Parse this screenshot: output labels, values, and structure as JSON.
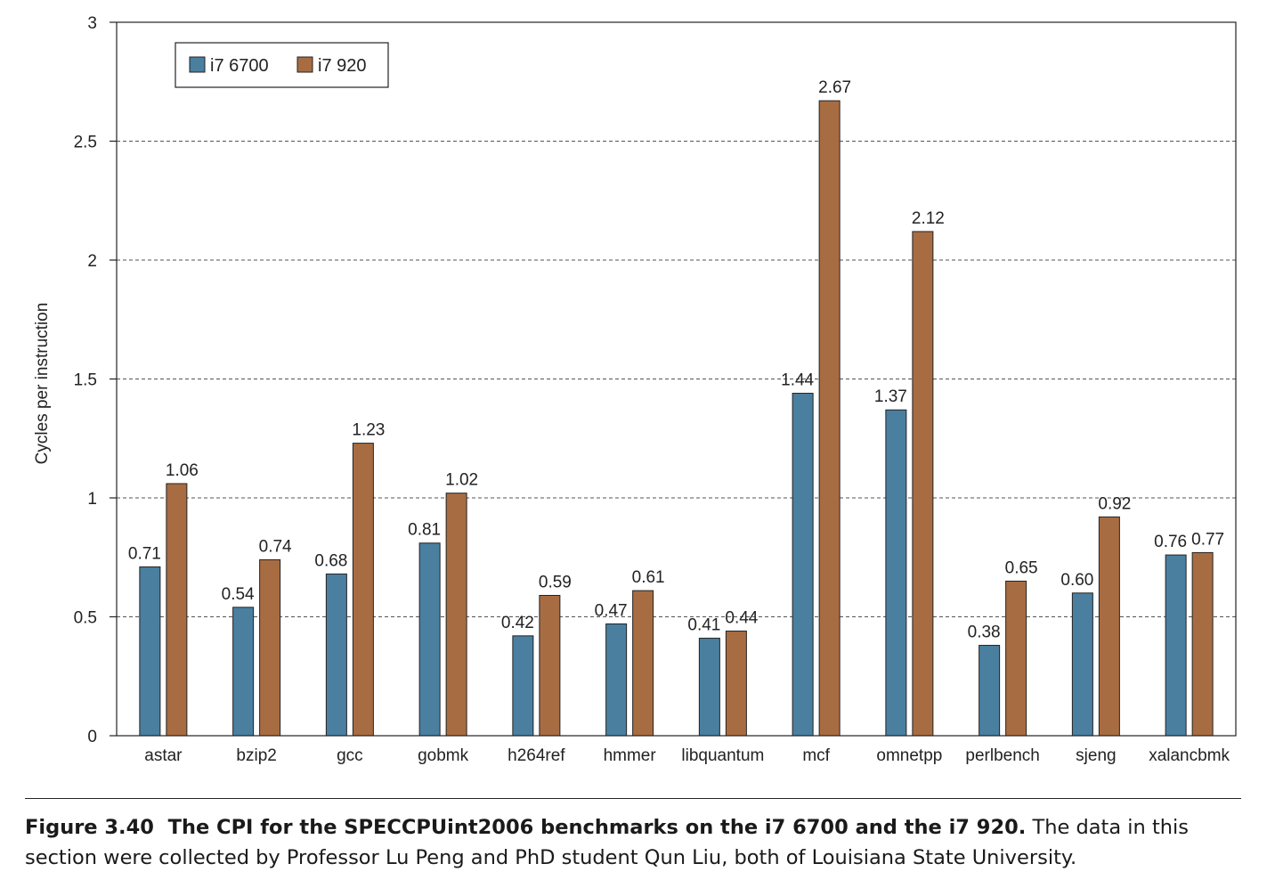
{
  "chart_data": {
    "type": "bar",
    "ylabel": "Cycles per instruction",
    "xlabel": "",
    "ylim": [
      0,
      3
    ],
    "yticks": [
      "0",
      "0.5",
      "1",
      "1.5",
      "2",
      "2.5",
      "3"
    ],
    "grid": "horizontal dashed",
    "legend_position": "top-left",
    "categories": [
      "astar",
      "bzip2",
      "gcc",
      "gobmk",
      "h264ref",
      "hmmer",
      "libquantum",
      "mcf",
      "omnetpp",
      "perlbench",
      "sjeng",
      "xalancbmk"
    ],
    "series": [
      {
        "name": "i7 6700",
        "color": "#4a7fa0",
        "values": [
          0.71,
          0.54,
          0.68,
          0.81,
          0.42,
          0.47,
          0.41,
          1.44,
          1.37,
          0.38,
          0.6,
          0.76
        ],
        "labels": [
          "0.71",
          "0.54",
          "0.68",
          "0.81",
          "0.42",
          "0.47",
          "0.41",
          "1.44",
          "1.37",
          "0.38",
          "0.60",
          "0.76"
        ]
      },
      {
        "name": "i7 920",
        "color": "#a86c42",
        "values": [
          1.06,
          0.74,
          1.23,
          1.02,
          0.59,
          0.61,
          0.44,
          2.67,
          2.12,
          0.65,
          0.92,
          0.77
        ],
        "labels": [
          "1.06",
          "0.74",
          "1.23",
          "1.02",
          "0.59",
          "0.61",
          "0.44",
          "2.67",
          "2.12",
          "0.65",
          "0.92",
          "0.77"
        ]
      }
    ]
  },
  "caption": {
    "label": "Figure 3.40",
    "title": "The CPI for the SPECCPUint2006 benchmarks on the i7 6700 and the i7 920.",
    "text": "The data in this section were collected by Professor Lu Peng and PhD student Qun Liu, both of Louisiana State University."
  }
}
